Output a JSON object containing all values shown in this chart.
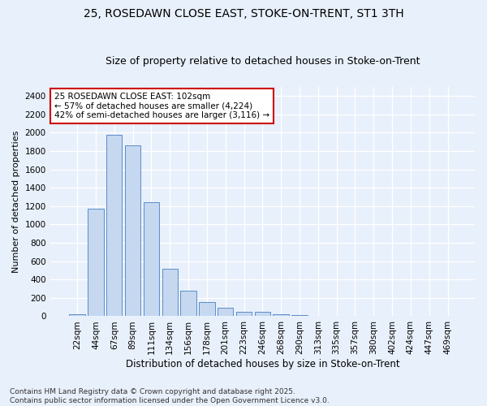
{
  "title": "25, ROSEDAWN CLOSE EAST, STOKE-ON-TRENT, ST1 3TH",
  "subtitle": "Size of property relative to detached houses in Stoke-on-Trent",
  "xlabel": "Distribution of detached houses by size in Stoke-on-Trent",
  "ylabel": "Number of detached properties",
  "categories": [
    "22sqm",
    "44sqm",
    "67sqm",
    "89sqm",
    "111sqm",
    "134sqm",
    "156sqm",
    "178sqm",
    "201sqm",
    "223sqm",
    "246sqm",
    "268sqm",
    "290sqm",
    "313sqm",
    "335sqm",
    "357sqm",
    "380sqm",
    "402sqm",
    "424sqm",
    "447sqm",
    "469sqm"
  ],
  "values": [
    25,
    1170,
    1980,
    1860,
    1240,
    520,
    275,
    150,
    90,
    45,
    45,
    20,
    15,
    5,
    3,
    2,
    1,
    1,
    1,
    1,
    5
  ],
  "bar_color": "#c5d8f0",
  "bar_edge_color": "#5b8dc8",
  "background_color": "#e8f0fb",
  "grid_color": "#ffffff",
  "annotation_text": "25 ROSEDAWN CLOSE EAST: 102sqm\n← 57% of detached houses are smaller (4,224)\n42% of semi-detached houses are larger (3,116) →",
  "annotation_box_color": "#ffffff",
  "annotation_box_edge": "#cc0000",
  "ylim": [
    0,
    2500
  ],
  "yticks": [
    0,
    200,
    400,
    600,
    800,
    1000,
    1200,
    1400,
    1600,
    1800,
    2000,
    2200,
    2400
  ],
  "footnote": "Contains HM Land Registry data © Crown copyright and database right 2025.\nContains public sector information licensed under the Open Government Licence v3.0.",
  "title_fontsize": 10,
  "subtitle_fontsize": 9,
  "xlabel_fontsize": 8.5,
  "ylabel_fontsize": 8,
  "tick_fontsize": 7.5,
  "annotation_fontsize": 7.5,
  "footnote_fontsize": 6.5
}
